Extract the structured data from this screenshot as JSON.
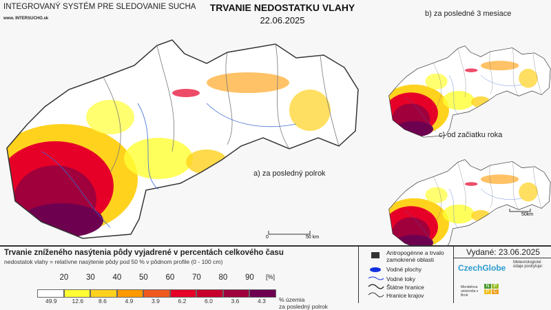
{
  "header": {
    "system": "INTEGROVANÝ SYSTÉM PRE SLEDOVANIE SUCHA",
    "website": "www. INTERSUCHO.sk",
    "title": "TRVANIE NEDOSTATKU VLAHY",
    "date": "22.06.2025"
  },
  "maps": {
    "a": "a) za posledný polrok",
    "b": "b) za posledné 3 mesiace",
    "c": "c) od začiatku roka",
    "scale_main": "50 km",
    "scale_small": "50km",
    "scale_zero": "0"
  },
  "legend": {
    "title": "Trvanie zníženého nasýtenia pôdy vyjadrené v percentách celkového času",
    "subtitle": "nedostatok vlahy = relatívne nasýtenie pôdy pod 50 % v pôdnom profile (0 - 100 cm)",
    "ticks": [
      "20",
      "30",
      "40",
      "50",
      "60",
      "70",
      "80",
      "90"
    ],
    "unit": "[%]",
    "colors": [
      "#ffffff",
      "#ffff33",
      "#ffd21e",
      "#ff9a00",
      "#f05a1e",
      "#e60028",
      "#c8002d",
      "#a0003c",
      "#6e0050"
    ],
    "percent_values": [
      "49.9",
      "12.6",
      "8.6",
      "4.9",
      "3.9",
      "6.2",
      "6.0",
      "3.6",
      "4.3"
    ],
    "percent_label": "% územia",
    "percent_label2": "za posledný polrok"
  },
  "symbols": [
    "Antropogénne a trvalo zamokrené oblasti",
    "Vodné plochy",
    "Vodné toky",
    "Štátne hranice",
    "Hranice krajov"
  ],
  "info": {
    "issued": "Vydané: 23.06.2025",
    "czechglobe": "CzechGlobe",
    "meteo": "Meteorologické údaje poskytuje:",
    "mendelu": "Mendelova univerzita v Brně",
    "npc": [
      "N",
      "P",
      "P",
      "C"
    ]
  }
}
